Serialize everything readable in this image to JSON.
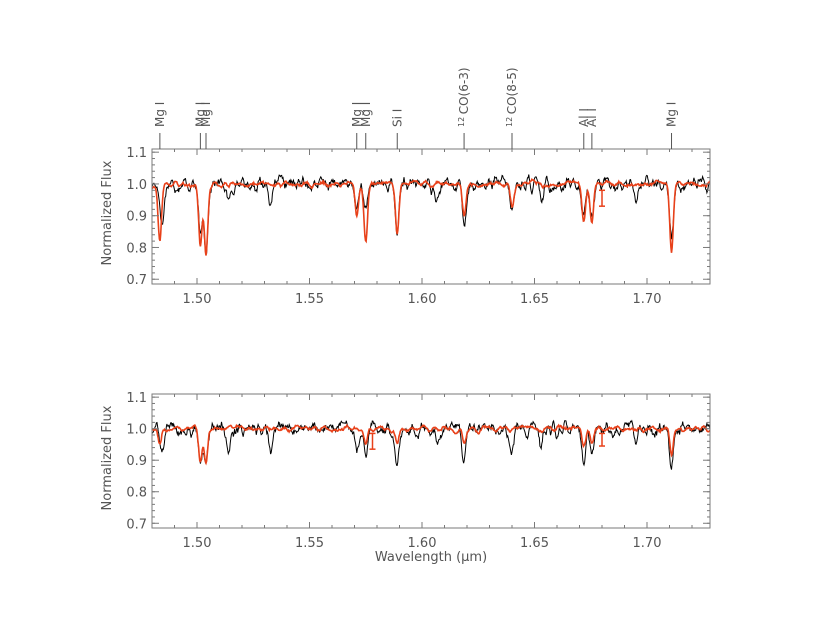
{
  "chart_data": [
    {
      "type": "line",
      "xlabel": "",
      "ylabel": "Normalized Flux",
      "xlim": [
        1.48,
        1.728
      ],
      "ylim": [
        0.685,
        1.11
      ],
      "xticks": [
        "1.50",
        "1.55",
        "1.60",
        "1.65",
        "1.70"
      ],
      "yticks": [
        "0.7",
        "0.8",
        "0.9",
        "1.0",
        "1.1"
      ],
      "colors": {
        "observed": "#000000",
        "model": "#e8411a"
      },
      "line_labels": [
        {
          "x": 1.4835,
          "text": "Mg I"
        },
        {
          "x": 1.5015,
          "text": "Mg I"
        },
        {
          "x": 1.504,
          "text": "Mg I"
        },
        {
          "x": 1.571,
          "text": "Mg I"
        },
        {
          "x": 1.575,
          "text": "Mg I"
        },
        {
          "x": 1.589,
          "text": "Si I"
        },
        {
          "x": 1.6187,
          "text": "CO(6-3)",
          "sup": "12"
        },
        {
          "x": 1.64,
          "text": "CO(8-5)",
          "sup": "12"
        },
        {
          "x": 1.6719,
          "text": "Al I"
        },
        {
          "x": 1.6755,
          "text": "Al I"
        },
        {
          "x": 1.7109,
          "text": "Mg I"
        }
      ],
      "absorption_lines": {
        "observed": [
          [
            1.4845,
            0.13
          ],
          [
            1.5015,
            0.17
          ],
          [
            1.504,
            0.2
          ],
          [
            1.514,
            0.06
          ],
          [
            1.533,
            0.06
          ],
          [
            1.571,
            0.08
          ],
          [
            1.575,
            0.1
          ],
          [
            1.589,
            0.15
          ],
          [
            1.607,
            0.05
          ],
          [
            1.6187,
            0.13
          ],
          [
            1.64,
            0.09
          ],
          [
            1.653,
            0.06
          ],
          [
            1.6719,
            0.1
          ],
          [
            1.6755,
            0.11
          ],
          [
            1.695,
            0.05
          ],
          [
            1.7109,
            0.16
          ]
        ],
        "model": [
          [
            1.4835,
            0.18
          ],
          [
            1.5015,
            0.19
          ],
          [
            1.504,
            0.22
          ],
          [
            1.571,
            0.1
          ],
          [
            1.575,
            0.18
          ],
          [
            1.589,
            0.16
          ],
          [
            1.6187,
            0.1
          ],
          [
            1.64,
            0.07
          ],
          [
            1.6719,
            0.12
          ],
          [
            1.6755,
            0.12
          ],
          [
            1.7109,
            0.21
          ]
        ]
      },
      "error_bar": {
        "x": 1.68,
        "y": 0.955,
        "yerr": 0.025
      }
    },
    {
      "type": "line",
      "xlabel": "Wavelength (μm)",
      "ylabel": "Normalized Flux",
      "xlim": [
        1.48,
        1.728
      ],
      "ylim": [
        0.685,
        1.11
      ],
      "xticks": [
        "1.50",
        "1.55",
        "1.60",
        "1.65",
        "1.70"
      ],
      "yticks": [
        "0.7",
        "0.8",
        "0.9",
        "1.0",
        "1.1"
      ],
      "colors": {
        "observed": "#000000",
        "model": "#e8411a"
      },
      "absorption_lines": {
        "observed": [
          [
            1.4845,
            0.08
          ],
          [
            1.5015,
            0.1
          ],
          [
            1.504,
            0.1
          ],
          [
            1.514,
            0.07
          ],
          [
            1.533,
            0.06
          ],
          [
            1.571,
            0.08
          ],
          [
            1.575,
            0.07
          ],
          [
            1.589,
            0.1
          ],
          [
            1.607,
            0.06
          ],
          [
            1.6187,
            0.13
          ],
          [
            1.64,
            0.08
          ],
          [
            1.653,
            0.06
          ],
          [
            1.6719,
            0.1
          ],
          [
            1.6755,
            0.09
          ],
          [
            1.695,
            0.05
          ],
          [
            1.7109,
            0.13
          ]
        ],
        "model": [
          [
            1.4835,
            0.06
          ],
          [
            1.5015,
            0.1
          ],
          [
            1.504,
            0.11
          ],
          [
            1.575,
            0.05
          ],
          [
            1.589,
            0.05
          ],
          [
            1.6187,
            0.05
          ],
          [
            1.6719,
            0.05
          ],
          [
            1.6755,
            0.05
          ],
          [
            1.7109,
            0.09
          ]
        ]
      },
      "error_bar": {
        "x": 1.68,
        "y": 0.965,
        "yerr": 0.02
      },
      "error_bar_2": {
        "x": 1.578,
        "y": 0.96,
        "yerr": 0.025
      }
    }
  ]
}
